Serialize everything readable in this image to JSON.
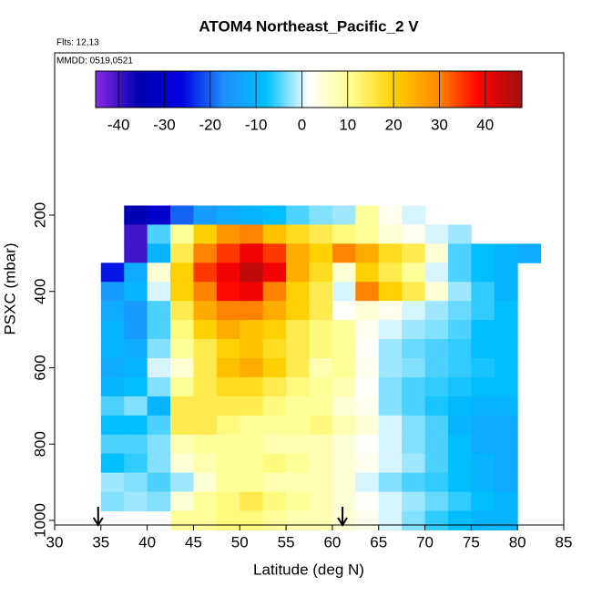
{
  "chart_data": {
    "type": "heatmap",
    "title": "ATOM4 Northeast_Pacific_2 V",
    "subtitle": "Flts: 12,13",
    "annotation": "MMDD: 0519,0521",
    "x_label": "Latitude (deg N)",
    "y_label": "PSXC (mbar)",
    "x": [
      36.25,
      38.75,
      41.25,
      43.75,
      46.25,
      48.75,
      51.25,
      53.75,
      56.25,
      58.75,
      61.25,
      63.75,
      66.25,
      68.75,
      71.25,
      73.75,
      76.25,
      78.75,
      81.25
    ],
    "y": [
      200,
      250,
      300,
      350,
      400,
      450,
      500,
      550,
      600,
      650,
      700,
      750,
      800,
      850,
      900,
      950,
      1000
    ],
    "z": [
      [
        null,
        -35,
        -30,
        -20,
        -15,
        -12,
        -10,
        -8,
        -5,
        -3,
        -2,
        10,
        3,
        0,
        null,
        null,
        null,
        null,
        null
      ],
      [
        null,
        -40,
        -5,
        10,
        20,
        28,
        30,
        22,
        18,
        15,
        12,
        10,
        5,
        3,
        0,
        -2,
        null,
        null,
        null
      ],
      [
        null,
        -40,
        -10,
        15,
        30,
        35,
        40,
        35,
        25,
        20,
        30,
        25,
        18,
        15,
        5,
        -5,
        -8,
        -10,
        -12
      ],
      [
        -25,
        -12,
        5,
        20,
        35,
        40,
        45,
        40,
        25,
        18,
        5,
        20,
        15,
        10,
        0,
        -5,
        -8,
        -10,
        null
      ],
      [
        -15,
        -10,
        0,
        20,
        30,
        38,
        40,
        30,
        20,
        15,
        0,
        30,
        20,
        15,
        5,
        -2,
        -6,
        -10,
        null
      ],
      [
        -12,
        -15,
        -5,
        15,
        25,
        30,
        30,
        25,
        20,
        15,
        2,
        5,
        3,
        0,
        -2,
        -4,
        -6,
        -8,
        null
      ],
      [
        -10,
        -15,
        -5,
        12,
        20,
        25,
        22,
        20,
        15,
        12,
        10,
        3,
        0,
        -2,
        -3,
        -5,
        -8,
        -8,
        null
      ],
      [
        -10,
        -12,
        -3,
        10,
        15,
        20,
        22,
        18,
        15,
        12,
        10,
        2,
        -2,
        -4,
        -5,
        -6,
        -8,
        -8,
        null
      ],
      [
        -12,
        -10,
        0,
        5,
        15,
        22,
        25,
        20,
        15,
        8,
        10,
        3,
        -2,
        -3,
        -5,
        -6,
        -7,
        -8,
        null
      ],
      [
        -10,
        -8,
        -3,
        10,
        15,
        18,
        18,
        15,
        12,
        10,
        8,
        2,
        -3,
        -5,
        -6,
        -7,
        -8,
        -8,
        null
      ],
      [
        -5,
        -3,
        -10,
        15,
        15,
        15,
        15,
        12,
        10,
        10,
        5,
        3,
        -3,
        -5,
        -7,
        -9,
        -10,
        -10,
        null
      ],
      [
        -8,
        -8,
        -5,
        15,
        15,
        12,
        10,
        10,
        10,
        12,
        8,
        5,
        0,
        -3,
        -5,
        -10,
        -12,
        -12,
        null
      ],
      [
        -5,
        -5,
        -3,
        8,
        10,
        10,
        10,
        8,
        8,
        8,
        5,
        2,
        0,
        -3,
        -5,
        -8,
        -12,
        -12,
        null
      ],
      [
        -8,
        -6,
        -3,
        5,
        8,
        10,
        10,
        12,
        10,
        8,
        5,
        3,
        0,
        -2,
        -5,
        -8,
        -10,
        -12,
        null
      ],
      [
        -2,
        -3,
        -5,
        -2,
        5,
        10,
        10,
        8,
        8,
        8,
        5,
        0,
        -3,
        -5,
        -6,
        -8,
        -10,
        -12,
        null
      ],
      [
        -3,
        -2,
        -3,
        5,
        10,
        12,
        15,
        12,
        10,
        8,
        5,
        2,
        0,
        -2,
        -4,
        -6,
        -8,
        -10,
        null
      ],
      [
        null,
        null,
        null,
        10,
        10,
        12,
        12,
        10,
        8,
        8,
        5,
        3,
        0,
        -3,
        -6,
        -8,
        -10,
        -10,
        null
      ]
    ],
    "xlim": [
      30,
      85
    ],
    "xticks": [
      30,
      35,
      40,
      45,
      50,
      55,
      60,
      65,
      70,
      75,
      80,
      85
    ],
    "ylim": [
      1012,
      -225
    ],
    "yticks": [
      200,
      400,
      600,
      800,
      1000
    ],
    "clim": [
      -45,
      48
    ],
    "cticks": [
      -40,
      -30,
      -20,
      -10,
      0,
      10,
      20,
      30,
      40
    ],
    "colors": [
      "#8a2be2",
      "#0000b0",
      "#0000e0",
      "#1e90ff",
      "#00bfff",
      "#ffffff",
      "#ffff90",
      "#ffd000",
      "#ff8c00",
      "#ff0000",
      "#a01010"
    ],
    "arrow_x": [
      34.7,
      61.1
    ],
    "grid": false
  }
}
